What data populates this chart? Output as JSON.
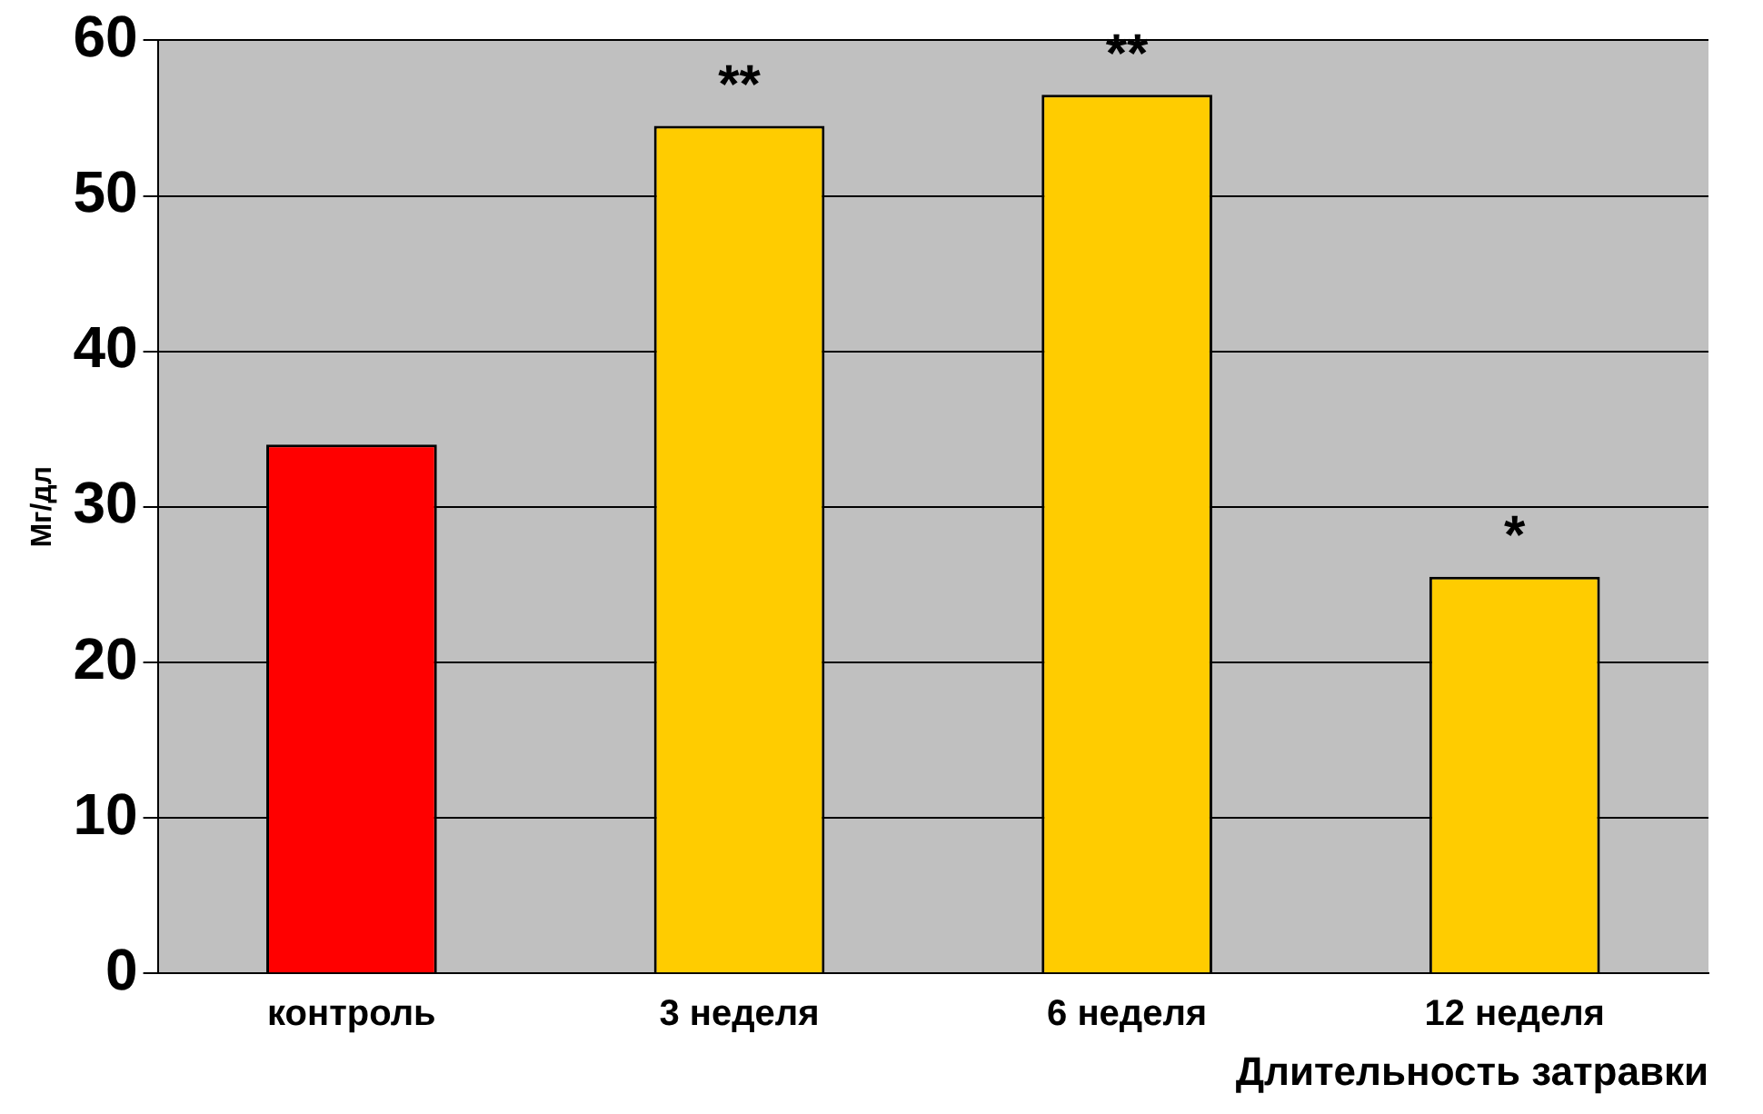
{
  "chart_data": {
    "type": "bar",
    "categories": [
      "контроль",
      "3 неделя",
      "6 неделя",
      "12 неделя"
    ],
    "values": [
      34,
      54.5,
      56.5,
      25.5
    ],
    "colors": [
      "#ff0000",
      "#ffcc00",
      "#ffcc00",
      "#ffcc00"
    ],
    "ylim": [
      0,
      60
    ],
    "yticks": [
      0,
      10,
      20,
      30,
      40,
      50,
      60
    ],
    "grid": "y",
    "ylabel": "Мг/дл",
    "xlabel": "Длительность затравки",
    "annotations": [
      {
        "text": "**",
        "x": "3 неделя",
        "y": 54.5
      },
      {
        "text": "**",
        "x": "6 неделя",
        "y": 56.5
      },
      {
        "text": "*",
        "x": "12 неделя",
        "y": 25.5
      }
    ]
  }
}
